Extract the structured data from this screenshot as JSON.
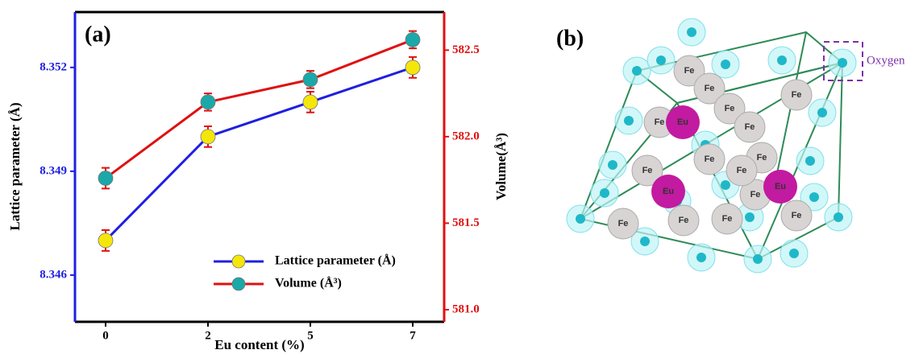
{
  "chart_data": {
    "type": "line",
    "annotation": "(a)",
    "x_label": "Eu content (%)",
    "y_label": "Lattice parameter (Å)",
    "y2_label": "Volume(Å³)",
    "categories": [
      "0",
      "2",
      "5",
      "7"
    ],
    "ylim": [
      8.34465,
      8.3536
    ],
    "yticks": [
      8.346,
      8.349,
      8.352
    ],
    "y_color": "#1f1fe0",
    "y2lim": [
      580.93,
      582.72
    ],
    "y2ticks": [
      {
        "value": 581,
        "label": "581.0"
      },
      581.5,
      {
        "value": 582,
        "label": "582.0"
      },
      582.5
    ],
    "y2_color": "#e01010",
    "legend": "lower right",
    "series": [
      {
        "name": "Lattice parameter (Å)",
        "color": "#1f1fe0",
        "marker_color": "#f5e60a",
        "values": [
          8.347,
          8.35,
          8.351,
          8.352
        ],
        "errors": [
          0.0003,
          0.0003,
          0.0003,
          0.0003
        ]
      },
      {
        "name": "Volume (Å³)",
        "color": "#e01010",
        "marker_color": "#1aa8a8",
        "axis": "y2",
        "values": [
          581.76,
          582.2,
          582.33,
          582.56
        ],
        "errors": [
          0.06,
          0.05,
          0.05,
          0.05
        ]
      }
    ]
  },
  "panel_b": {
    "label": "(b)",
    "fe": "Fe",
    "eu": "Eu",
    "oxygen": "Oxygen"
  }
}
